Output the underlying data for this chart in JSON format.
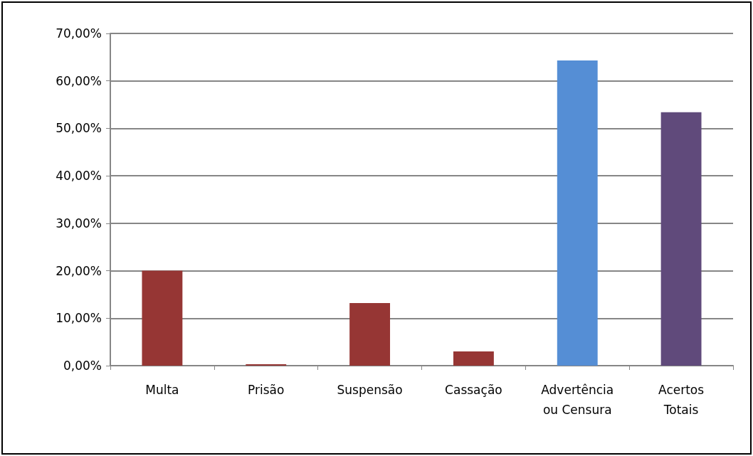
{
  "chart_data": {
    "type": "bar",
    "categories": [
      "Multa",
      "Prisão",
      "Suspensão",
      "Cassação",
      "Advertência\nou Censura",
      "Acertos\nTotais"
    ],
    "values": [
      20,
      0.3,
      13.2,
      3,
      64.3,
      53.4
    ],
    "colors": [
      "#963634",
      "#963634",
      "#963634",
      "#963634",
      "#558ed5",
      "#604a7b"
    ],
    "ylim": [
      0,
      70
    ],
    "yticks": [
      {
        "value": 0,
        "label": "0,00%"
      },
      {
        "value": 10,
        "label": "10,00%"
      },
      {
        "value": 20,
        "label": "20,00%"
      },
      {
        "value": 30,
        "label": "30,00%"
      },
      {
        "value": 40,
        "label": "40,00%"
      },
      {
        "value": 50,
        "label": "50,00%"
      },
      {
        "value": 60,
        "label": "60,00%"
      },
      {
        "value": 70,
        "label": "70,00%"
      }
    ],
    "grid": "y"
  }
}
